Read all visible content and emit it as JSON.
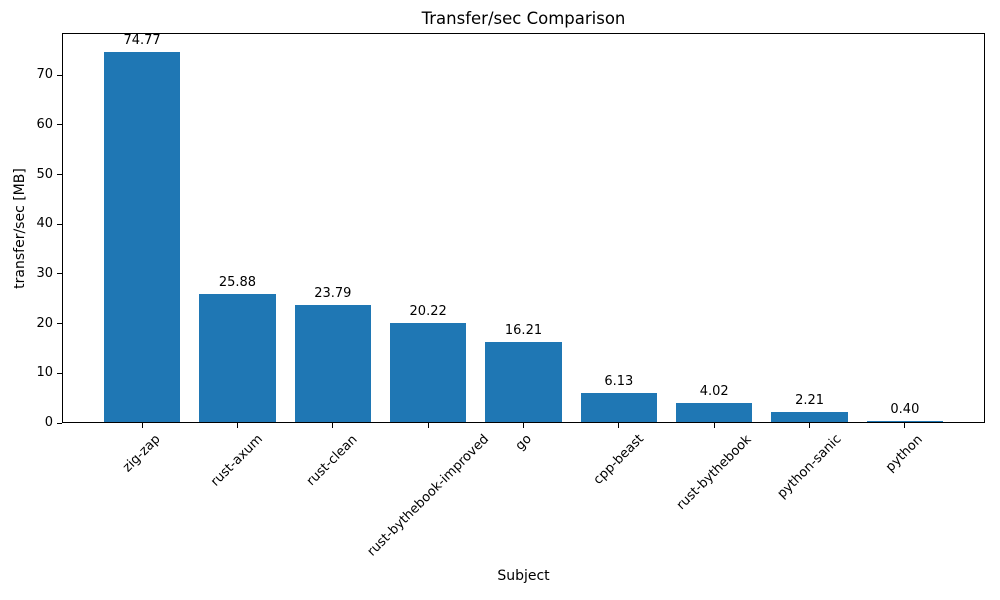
{
  "chart_data": {
    "type": "bar",
    "title": "Transfer/sec Comparison",
    "xlabel": "Subject",
    "ylabel": "transfer/sec [MB]",
    "categories": [
      "zig-zap",
      "rust-axum",
      "rust-clean",
      "rust-bythebook-improved",
      "go",
      "cpp-beast",
      "rust-bythebook",
      "python-sanic",
      "python"
    ],
    "values": [
      74.77,
      25.88,
      23.79,
      20.22,
      16.21,
      6.13,
      4.02,
      2.21,
      0.4
    ],
    "value_labels": [
      "74.77",
      "25.88",
      "23.79",
      "20.22",
      "16.21",
      "6.13",
      "4.02",
      "2.21",
      "0.40"
    ],
    "yticks": [
      0,
      10,
      20,
      30,
      40,
      50,
      60,
      70
    ],
    "ylim": [
      0,
      78.5
    ],
    "bar_color": "#1f77b4",
    "text_color": "#000000",
    "x_tick_rotation_deg": 45,
    "grid": false,
    "legend": null
  }
}
